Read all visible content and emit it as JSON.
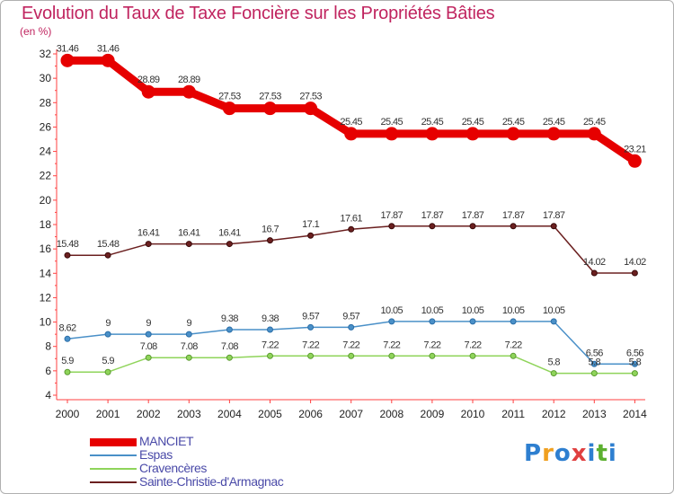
{
  "title": "Evolution du Taux de Taxe Foncière sur les Propriétés Bâties",
  "unit": "(en %)",
  "logo": {
    "letters": [
      "P",
      "r",
      "o",
      "x",
      "i",
      "t",
      "i"
    ],
    "colors": [
      "#2e7fd0",
      "#f0a020",
      "#2e7fd0",
      "#e04040",
      "#2e7fd0",
      "#5cb030",
      "#2e7fd0"
    ]
  },
  "chart_data": {
    "type": "line",
    "title": "Evolution du Taux de Taxe Foncière sur les Propriétés Bâties",
    "ylabel": "(en %)",
    "xlabel": "",
    "categories": [
      "2000",
      "2001",
      "2002",
      "2003",
      "2004",
      "2005",
      "2006",
      "2007",
      "2008",
      "2009",
      "2010",
      "2011",
      "2012",
      "2013",
      "2014"
    ],
    "ylim": [
      4,
      32
    ],
    "yticks": [
      4,
      6,
      8,
      10,
      12,
      14,
      16,
      18,
      20,
      22,
      24,
      26,
      28,
      30,
      32
    ],
    "grid": false,
    "series": [
      {
        "name": "MANCIET",
        "color": "#e60000",
        "values": [
          31.46,
          31.46,
          28.89,
          28.89,
          27.53,
          27.53,
          27.53,
          25.45,
          25.45,
          25.45,
          25.45,
          25.45,
          25.45,
          25.45,
          23.21
        ],
        "labels": [
          "31.46",
          "31.46",
          "28.89",
          "28.89",
          "27.53",
          "27.53",
          "27.53",
          "25.45",
          "25.45",
          "25.45",
          "25.45",
          "25.45",
          "25.45",
          "25.45",
          "23.21"
        ]
      },
      {
        "name": "Espas",
        "color": "#4a90c8",
        "values": [
          8.62,
          9,
          9,
          9,
          9.38,
          9.38,
          9.57,
          9.57,
          10.05,
          10.05,
          10.05,
          10.05,
          10.05,
          6.56,
          6.56
        ],
        "labels": [
          "8.62",
          "9",
          "9",
          "9",
          "9.38",
          "9.38",
          "9.57",
          "9.57",
          "10.05",
          "10.05",
          "10.05",
          "10.05",
          "10.05",
          "6.56",
          "6.56"
        ]
      },
      {
        "name": "Cravencères",
        "color": "#8fd45a",
        "values": [
          5.9,
          5.9,
          7.08,
          7.08,
          7.08,
          7.22,
          7.22,
          7.22,
          7.22,
          7.22,
          7.22,
          7.22,
          5.8,
          5.8,
          5.8
        ],
        "labels": [
          "5.9",
          "5.9",
          "7.08",
          "7.08",
          "7.08",
          "7.22",
          "7.22",
          "7.22",
          "7.22",
          "7.22",
          "7.22",
          "7.22",
          "5.8",
          "5.8",
          "5.8"
        ]
      },
      {
        "name": "Sainte-Christie-d'Armagnac",
        "color": "#6b2020",
        "values": [
          15.48,
          15.48,
          16.41,
          16.41,
          16.41,
          16.7,
          17.1,
          17.61,
          17.87,
          17.87,
          17.87,
          17.87,
          17.87,
          14.02,
          14.02
        ],
        "labels": [
          "15.48",
          "15.48",
          "16.41",
          "16.41",
          "16.41",
          "16.7",
          "17.1",
          "17.61",
          "17.87",
          "17.87",
          "17.87",
          "17.87",
          "17.87",
          "14.02",
          "14.02"
        ]
      }
    ]
  }
}
